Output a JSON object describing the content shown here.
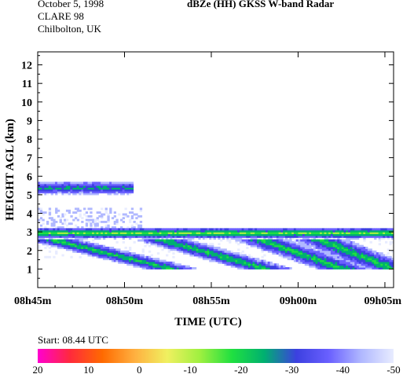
{
  "header": {
    "date": "October 5, 1998",
    "campaign": "CLARE 98",
    "site": "Chilbolton, UK",
    "title": "dBZe (HH)  GKSS  W-band Radar"
  },
  "colorbar": {
    "start_label": "Start: 08.44 UTC",
    "tick_labels": [
      "20",
      "10",
      "0",
      "-10",
      "-20",
      "-30",
      "-40",
      "-50"
    ],
    "colors": [
      "#ff00d0",
      "#ff2a3c",
      "#ff6a00",
      "#ffb040",
      "#f0f060",
      "#a0f040",
      "#20e040",
      "#00b070",
      "#3c40e0",
      "#6a60ff",
      "#b0b8ff",
      "#e8ecff"
    ]
  },
  "chart_data": {
    "type": "heatmap",
    "title": "dBZe (HH)  GKSS  W-band Radar",
    "xlabel": "TIME (UTC)",
    "ylabel": "HEIGHT AGL (km)",
    "x_tick_labels": [
      "08h45m",
      "08h50m",
      "08h55m",
      "09h00m",
      "09h05m"
    ],
    "x_tick_minutes": [
      0,
      5,
      10,
      15,
      20
    ],
    "xlim_minutes": [
      0,
      20.5
    ],
    "y_ticks": [
      1,
      2,
      3,
      4,
      5,
      6,
      7,
      8,
      9,
      10,
      11,
      12
    ],
    "ylim": [
      0,
      12.7
    ],
    "grid": false,
    "units": "dBZe",
    "color_range": [
      20,
      -50
    ],
    "layers": [
      {
        "name": "upper_layer",
        "t_start": 0,
        "t_end": 5.5,
        "base_km": 5.0,
        "top_km": 5.65,
        "dbz_core": -25,
        "dbz_edge": -45
      },
      {
        "name": "sparse_echoes",
        "t_start": 0,
        "t_end": 6.0,
        "base_km": 3.1,
        "top_km": 4.3,
        "dbz_core": -45,
        "dbz_edge": -48
      },
      {
        "name": "main_layer_top",
        "t_start": 0,
        "t_end": 20.5,
        "base_km": 2.6,
        "top_km": 3.2,
        "dbz_core": -15,
        "dbz_edge": -45
      },
      {
        "name": "main_layer_body",
        "t_start": 0,
        "t_end": 20.5,
        "base_km": 1.0,
        "top_km": 2.6,
        "dbz_core": -20,
        "dbz_edge": -45
      }
    ],
    "fallstreaks": [
      {
        "t_top": 0.5,
        "t_bottom": 7.5,
        "h_top": 2.6,
        "h_bottom": 1.0
      },
      {
        "t_top": 6.5,
        "t_bottom": 13.0,
        "h_top": 2.7,
        "h_bottom": 1.0
      },
      {
        "t_top": 12.0,
        "t_bottom": 17.5,
        "h_top": 2.8,
        "h_bottom": 1.0
      },
      {
        "t_top": 15.5,
        "t_bottom": 20.3,
        "h_top": 2.8,
        "h_bottom": 1.0
      }
    ]
  }
}
